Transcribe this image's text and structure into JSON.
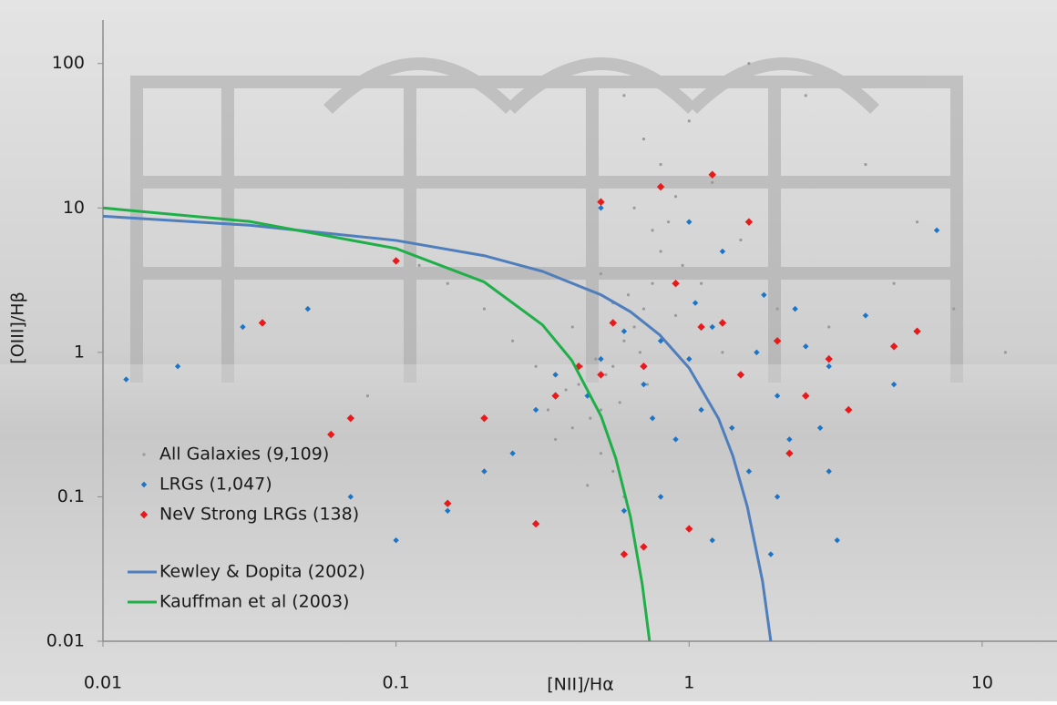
{
  "chart_data": {
    "type": "scatter",
    "x_label": "[NII]/Hα",
    "y_label": "[OIII]/Hβ",
    "xscale": "log",
    "yscale": "log",
    "grid": false,
    "legend": "lower left",
    "xlim": [
      0.01,
      18
    ],
    "ylim": [
      0.01,
      200
    ],
    "xticks": [
      0.01,
      0.1,
      1,
      10
    ],
    "yticks": [
      0.01,
      0.1,
      1,
      10,
      100
    ],
    "series": [
      {
        "name": "All Galaxies (9,109)",
        "color": "#9a9a9a",
        "kind": "scatter",
        "x": [
          0.45,
          0.5,
          0.42,
          0.55,
          0.6,
          0.65,
          0.7,
          0.75,
          0.8,
          0.85,
          0.9,
          0.8,
          0.7,
          1.0,
          0.6,
          1.2,
          1.5,
          0.4,
          0.35,
          0.3,
          0.25,
          0.2,
          0.15,
          0.12,
          0.5,
          0.55,
          0.6,
          0.45,
          0.48,
          0.52,
          0.58,
          0.38,
          0.33,
          0.62,
          0.68,
          0.72,
          0.9,
          1.1,
          1.3,
          2,
          3,
          5,
          8,
          12,
          0.08,
          0.03,
          2.5,
          1.6,
          4,
          6,
          0.95,
          0.75,
          0.65,
          0.55,
          0.5,
          0.4,
          0.46,
          0.43
        ],
        "values": [
          0.5,
          0.4,
          0.6,
          0.8,
          1.2,
          1.5,
          2,
          3,
          5,
          8,
          12,
          20,
          30,
          40,
          60,
          15,
          6,
          0.3,
          0.25,
          0.8,
          1.2,
          2,
          3,
          4,
          0.2,
          0.15,
          0.1,
          0.12,
          0.9,
          0.7,
          0.45,
          0.55,
          0.4,
          2.5,
          1,
          0.6,
          1.8,
          3,
          1,
          2,
          1.5,
          3,
          2,
          1,
          0.5,
          0.2,
          60,
          100,
          20,
          8,
          4,
          7,
          10,
          2.2,
          3.5,
          1.5,
          0.35,
          0.8
        ]
      },
      {
        "name": "LRGs (1,047)",
        "color": "#1b74c6",
        "kind": "scatter",
        "x": [
          0.8,
          1,
          1.2,
          1.5,
          2,
          2.5,
          3,
          1.8,
          0.9,
          1.1,
          1.4,
          0.7,
          0.6,
          0.5,
          0.45,
          2.2,
          3.5,
          4,
          1.3,
          1,
          0.5,
          0.3,
          0.25,
          0.2,
          0.15,
          0.1,
          0.07,
          0.05,
          0.03,
          0.012,
          0.018,
          0.6,
          0.8,
          1.2,
          2,
          3,
          5,
          7,
          1.6,
          2.8,
          0.35,
          0.9,
          1.7,
          2.3,
          1.05,
          0.75,
          1.9,
          3.2
        ],
        "values": [
          1.2,
          0.9,
          1.5,
          0.7,
          0.5,
          1.1,
          0.8,
          2.5,
          3,
          0.4,
          0.3,
          0.6,
          1.4,
          0.9,
          0.5,
          0.25,
          0.4,
          1.8,
          5,
          8,
          10,
          0.4,
          0.2,
          0.15,
          0.08,
          0.05,
          0.1,
          2,
          1.5,
          0.65,
          0.8,
          0.08,
          0.1,
          0.05,
          0.1,
          0.15,
          0.6,
          7,
          0.15,
          0.3,
          0.7,
          0.25,
          1,
          2,
          2.2,
          0.35,
          0.04,
          0.05
        ]
      },
      {
        "name": "NeV Strong LRGs (138)",
        "color": "#e8191a",
        "kind": "scatter",
        "x": [
          0.5,
          0.8,
          1.2,
          1.6,
          0.9,
          1.1,
          1.5,
          2,
          2.5,
          3,
          5,
          6,
          0.7,
          0.5,
          0.42,
          0.35,
          0.2,
          0.07,
          0.06,
          0.035,
          0.1,
          0.6,
          0.7,
          1,
          0.3,
          0.15,
          2.2,
          3.5,
          0.55,
          1.3
        ],
        "values": [
          11,
          14,
          17,
          8,
          3,
          1.5,
          0.7,
          1.2,
          0.5,
          0.9,
          1.1,
          1.4,
          0.8,
          0.7,
          0.8,
          0.5,
          0.35,
          0.35,
          0.27,
          1.6,
          4.3,
          0.04,
          0.045,
          0.06,
          0.065,
          0.09,
          0.2,
          0.4,
          1.6,
          1.6
        ]
      },
      {
        "name": "Kewley & Dopita (2002)",
        "color": "#4f7ebd",
        "kind": "line",
        "x": [
          0.01,
          0.0316,
          0.1,
          0.2,
          0.316,
          0.501,
          0.631,
          0.794,
          1,
          1.26,
          1.41,
          1.58,
          1.78,
          1.9
        ],
        "values": [
          8.77,
          7.59,
          5.96,
          4.67,
          3.64,
          2.5,
          1.91,
          1.32,
          0.78,
          0.348,
          0.192,
          0.0853,
          0.0261,
          0.01
        ]
      },
      {
        "name": "Kauffman et al (2003)",
        "color": "#1faf48",
        "kind": "line",
        "x": [
          0.01,
          0.0316,
          0.1,
          0.2,
          0.316,
          0.398,
          0.501,
          0.562,
          0.631,
          0.692,
          0.733
        ],
        "values": [
          10.0,
          8.06,
          5.24,
          3.07,
          1.55,
          0.88,
          0.361,
          0.185,
          0.0724,
          0.0248,
          0.01
        ]
      }
    ]
  }
}
